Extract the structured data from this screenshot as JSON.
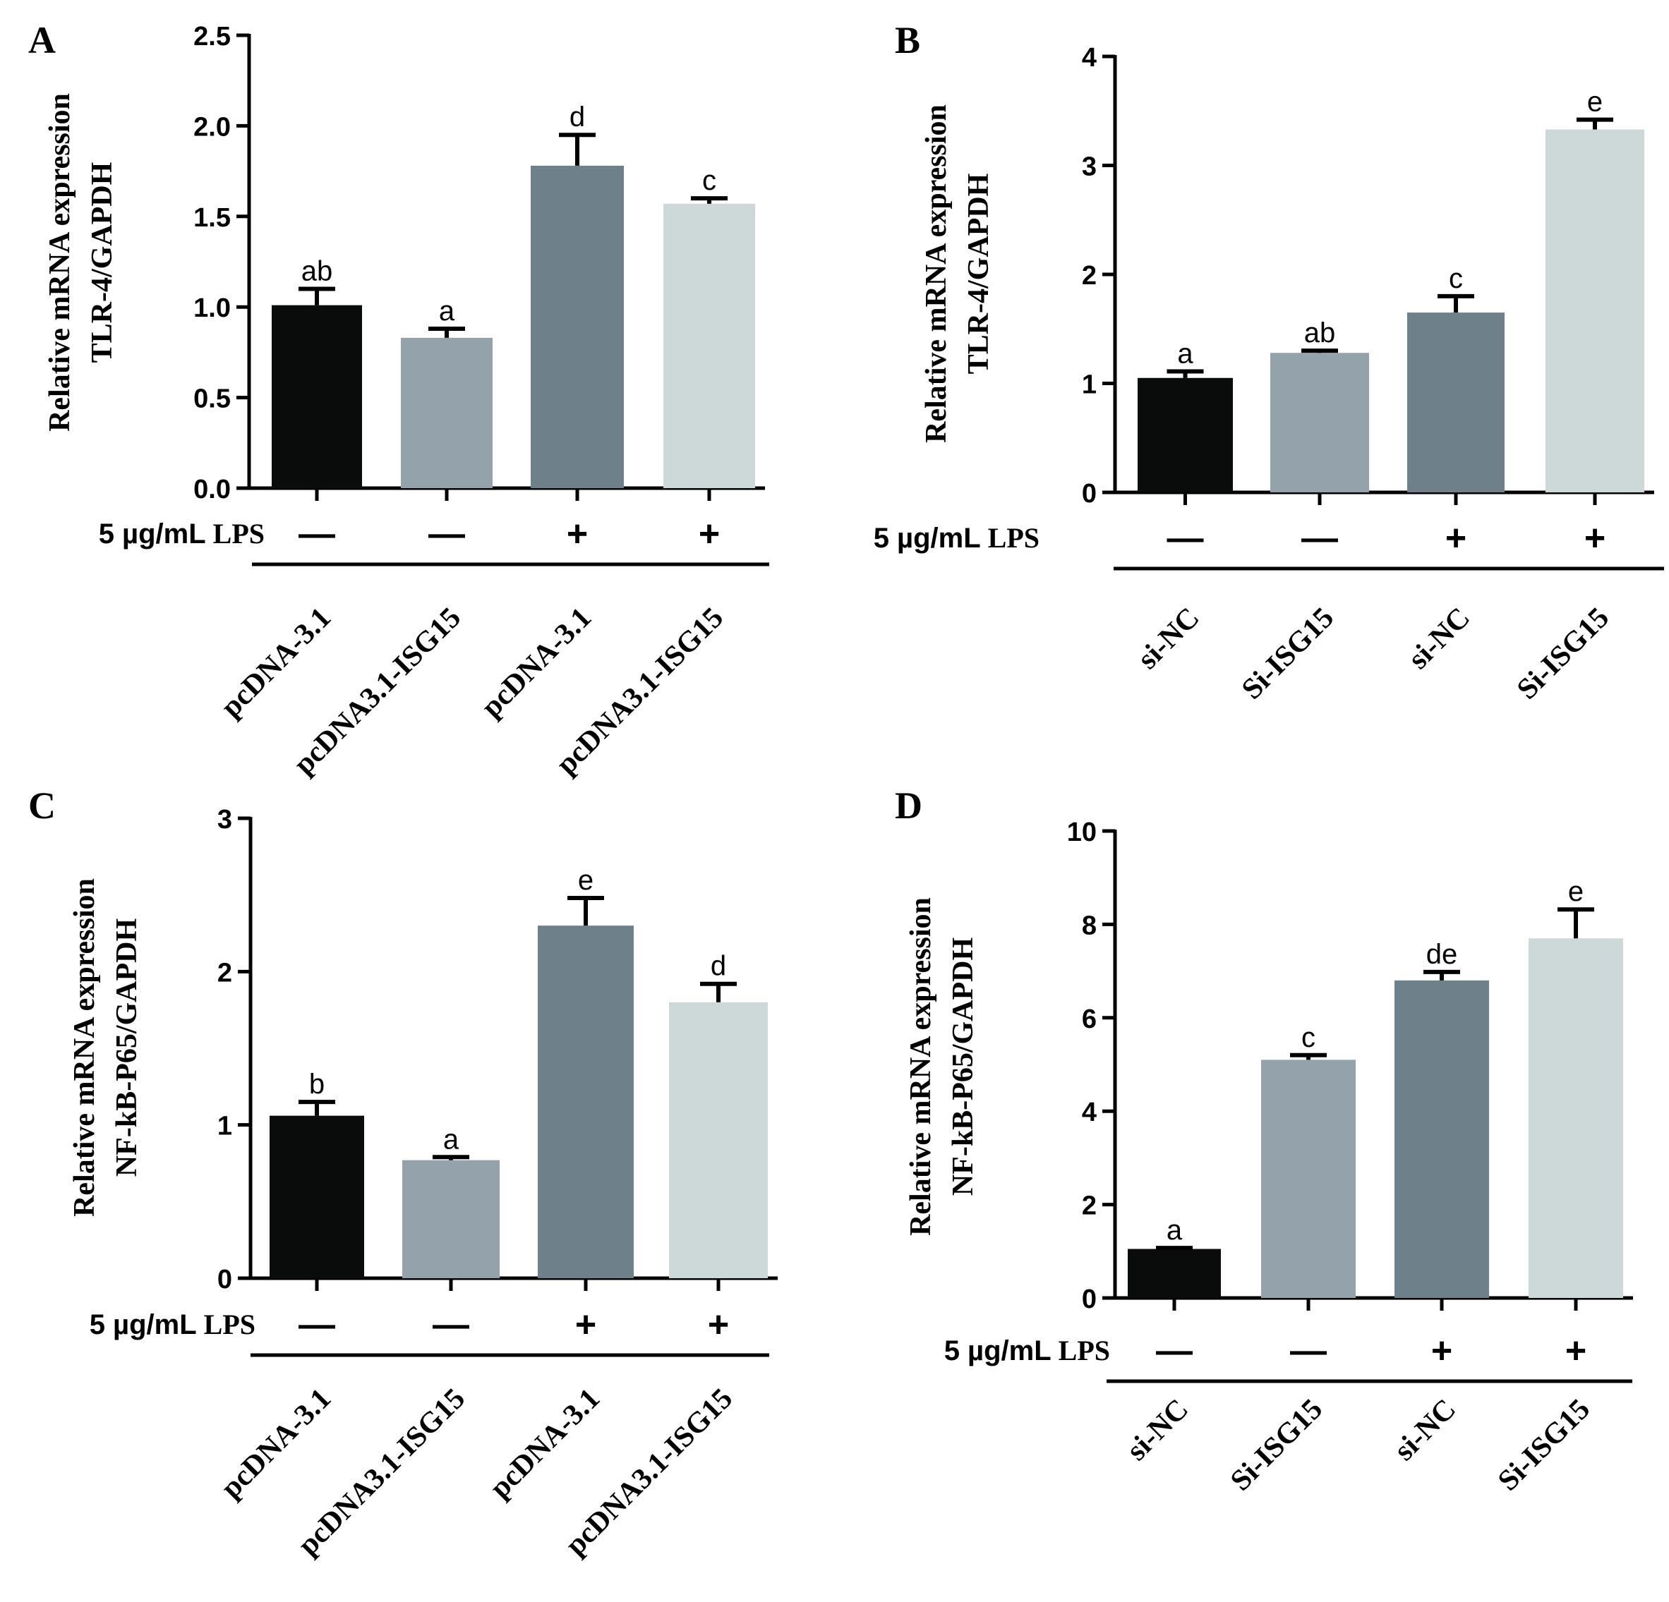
{
  "lps_label": {
    "dose": "5 µg/mL",
    "agent": "LPS"
  },
  "colors": [
    "#0a0c0b",
    "#94a3ab",
    "#6e818a",
    "#cdd8d9"
  ],
  "chart_data": [
    {
      "panel": "A",
      "type": "bar",
      "ylabel": [
        "Relative mRNA expression",
        "TLR-4/GAPDH"
      ],
      "ylim": [
        0,
        2.5
      ],
      "yticks": [
        "0.0",
        "0.5",
        "1.0",
        "1.5",
        "2.0",
        "2.5"
      ],
      "lps": [
        "—",
        "—",
        "+",
        "+"
      ],
      "categories": [
        "pcDNA-3.1",
        "pcDNA3.1-ISG15",
        "pcDNA-3.1",
        "pcDNA3.1-ISG15"
      ],
      "values": [
        1.01,
        0.83,
        1.78,
        1.57
      ],
      "errors": [
        0.09,
        0.05,
        0.17,
        0.03
      ],
      "sig": [
        "ab",
        "a",
        "d",
        "c"
      ]
    },
    {
      "panel": "B",
      "type": "bar",
      "ylabel": [
        "Relative mRNA expression",
        "TLR-4/GAPDH"
      ],
      "ylim": [
        0,
        4
      ],
      "yticks": [
        "0",
        "1",
        "2",
        "3",
        "4"
      ],
      "lps": [
        "—",
        "—",
        "+",
        "+"
      ],
      "categories": [
        "si-NC",
        "Si-ISG15",
        "si-NC",
        "Si-ISG15"
      ],
      "values": [
        1.05,
        1.28,
        1.65,
        3.33
      ],
      "errors": [
        0.06,
        0.02,
        0.15,
        0.09
      ],
      "sig": [
        "a",
        "ab",
        "c",
        "e"
      ]
    },
    {
      "panel": "C",
      "type": "bar",
      "ylabel": [
        "Relative mRNA expression",
        "NF-kB-P65/GAPDH"
      ],
      "ylim": [
        0,
        3
      ],
      "yticks": [
        "0",
        "1",
        "2",
        "3"
      ],
      "lps": [
        "—",
        "—",
        "+",
        "+"
      ],
      "categories": [
        "pcDNA-3.1",
        "pcDNA3.1-ISG15",
        "pcDNA-3.1",
        "pcDNA3.1-ISG15"
      ],
      "values": [
        1.06,
        0.77,
        2.3,
        1.8
      ],
      "errors": [
        0.09,
        0.02,
        0.18,
        0.12
      ],
      "sig": [
        "b",
        "a",
        "e",
        "d"
      ]
    },
    {
      "panel": "D",
      "type": "bar",
      "ylabel": [
        "Relative mRNA expression",
        "NF-kB-P65/GAPDH"
      ],
      "ylim": [
        0,
        10
      ],
      "yticks": [
        "0",
        "2",
        "4",
        "6",
        "8",
        "10"
      ],
      "lps": [
        "—",
        "—",
        "+",
        "+"
      ],
      "categories": [
        "si-NC",
        "Si-ISG15",
        "si-NC",
        "Si-ISG15"
      ],
      "values": [
        1.05,
        5.1,
        6.8,
        7.7
      ],
      "errors": [
        0.02,
        0.1,
        0.18,
        0.62
      ],
      "sig": [
        "a",
        "c",
        "de",
        "e"
      ]
    }
  ]
}
